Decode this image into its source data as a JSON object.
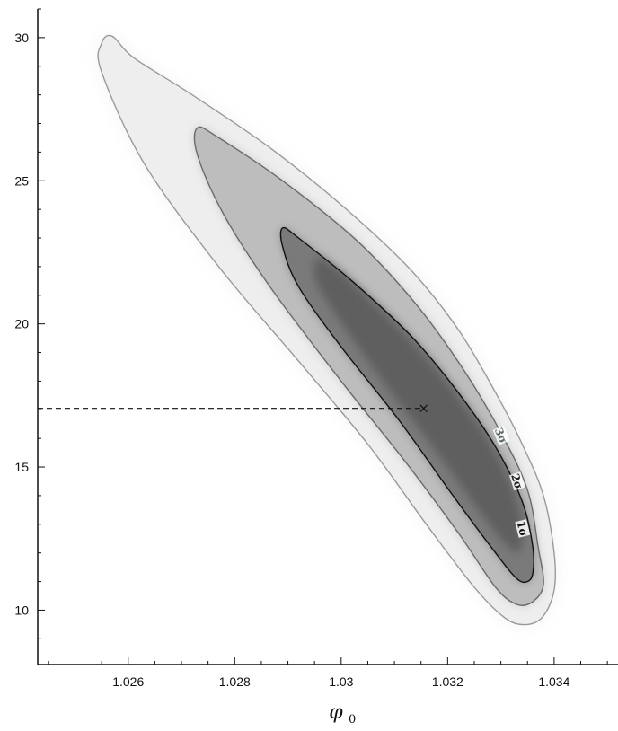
{
  "chart_data": {
    "type": "contour",
    "title": "",
    "xlabel": "φ",
    "xlabel_subscript": "0",
    "ylabel": "",
    "xlim": [
      1.0243,
      1.0352
    ],
    "ylim": [
      8.1,
      31.0
    ],
    "x_ticks": [
      1.026,
      1.028,
      1.03,
      1.032,
      1.034
    ],
    "x_tick_labels": [
      "1.026",
      "1.028",
      "1.03",
      "1.032",
      "1.034"
    ],
    "y_ticks": [
      10,
      15,
      20,
      25,
      30
    ],
    "y_tick_labels": [
      "10",
      "15",
      "20",
      "25",
      "30"
    ],
    "grid": false,
    "best_fit": {
      "x": 1.03155,
      "y": 17.05,
      "marker": "×"
    },
    "contours": [
      {
        "level": "3σ",
        "label": "3σ",
        "line_color": "#9a9a9a",
        "fill": "#eeeeee",
        "path": [
          [
            1.0257,
            30.05
          ],
          [
            1.0261,
            29.3
          ],
          [
            1.0272,
            28.0
          ],
          [
            1.0287,
            26.1
          ],
          [
            1.0301,
            24.0
          ],
          [
            1.0313,
            21.9
          ],
          [
            1.0322,
            19.8
          ],
          [
            1.0329,
            17.6
          ],
          [
            1.0334,
            15.8
          ],
          [
            1.0338,
            14.0
          ],
          [
            1.034,
            12.0
          ],
          [
            1.034,
            10.7
          ],
          [
            1.0338,
            9.8
          ],
          [
            1.0335,
            9.5
          ],
          [
            1.0331,
            9.7
          ],
          [
            1.0325,
            10.8
          ],
          [
            1.0316,
            13.0
          ],
          [
            1.0305,
            15.8
          ],
          [
            1.0292,
            18.7
          ],
          [
            1.0277,
            22.0
          ],
          [
            1.0263,
            25.6
          ],
          [
            1.0255,
            28.8
          ],
          [
            1.0255,
            29.8
          ]
        ]
      },
      {
        "level": "2σ",
        "label": "2σ",
        "line_color": "#6a6a6a",
        "fill": "#bdbdbd",
        "path": [
          [
            1.0273,
            26.85
          ],
          [
            1.0277,
            26.5
          ],
          [
            1.0289,
            25.0
          ],
          [
            1.0303,
            22.9
          ],
          [
            1.0314,
            20.7
          ],
          [
            1.0323,
            18.4
          ],
          [
            1.033,
            16.2
          ],
          [
            1.0335,
            14.2
          ],
          [
            1.0337,
            12.2
          ],
          [
            1.0338,
            10.9
          ],
          [
            1.0336,
            10.3
          ],
          [
            1.0333,
            10.2
          ],
          [
            1.0329,
            10.8
          ],
          [
            1.0322,
            12.7
          ],
          [
            1.0312,
            15.2
          ],
          [
            1.03,
            18.0
          ],
          [
            1.0287,
            21.2
          ],
          [
            1.0278,
            23.8
          ],
          [
            1.0273,
            25.9
          ]
        ]
      },
      {
        "level": "1σ",
        "label": "1σ",
        "line_color": "#111111",
        "fill": "#7a7a7a",
        "path": [
          [
            1.0289,
            23.35
          ],
          [
            1.0292,
            23.0
          ],
          [
            1.0302,
            21.5
          ],
          [
            1.0313,
            19.6
          ],
          [
            1.0322,
            17.6
          ],
          [
            1.0329,
            15.7
          ],
          [
            1.0334,
            13.8
          ],
          [
            1.0336,
            12.2
          ],
          [
            1.0336,
            11.3
          ],
          [
            1.0335,
            11.0
          ],
          [
            1.0333,
            11.1
          ],
          [
            1.0329,
            12.0
          ],
          [
            1.0321,
            14.0
          ],
          [
            1.0311,
            16.6
          ],
          [
            1.03,
            19.2
          ],
          [
            1.0292,
            21.3
          ],
          [
            1.0289,
            22.7
          ]
        ]
      }
    ],
    "core": {
      "fill": "#5e5e5e",
      "path": [
        [
          1.0297,
          22.2
        ],
        [
          1.031,
          20.0
        ],
        [
          1.032,
          17.9
        ],
        [
          1.0328,
          15.8
        ],
        [
          1.0333,
          13.8
        ],
        [
          1.0334,
          12.3
        ],
        [
          1.0332,
          12.1
        ],
        [
          1.0327,
          13.2
        ],
        [
          1.0318,
          15.5
        ],
        [
          1.0307,
          18.2
        ],
        [
          1.0298,
          20.6
        ],
        [
          1.0295,
          21.7
        ]
      ]
    },
    "label_positions": [
      {
        "text": "3σ",
        "x": 1.033,
        "y": 16.1,
        "angle": 68,
        "color": "#5a6a6a"
      },
      {
        "text": "2σ",
        "x": 1.0333,
        "y": 14.5,
        "angle": 72,
        "color": "#222222"
      },
      {
        "text": "1σ",
        "x": 1.0334,
        "y": 12.85,
        "angle": 76,
        "color": "#111111"
      }
    ]
  }
}
